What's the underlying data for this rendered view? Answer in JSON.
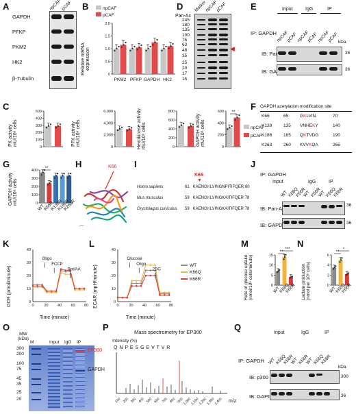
{
  "panels": {
    "A": "A",
    "B": "B",
    "C": "C",
    "D": "D",
    "E": "E",
    "F": "F",
    "G": "G",
    "H": "H",
    "I": "I",
    "J": "J",
    "K": "K",
    "L": "L",
    "M": "M",
    "N": "N",
    "O": "O",
    "P": "P",
    "Q": "Q"
  },
  "colors": {
    "npCAF": "#c7c7c7",
    "pCAF": "#e34a4a",
    "wt": "#8a8a8a",
    "k66q": "#f3b43a",
    "k66r": "#d63b3b",
    "k139r": "#3a6fb5",
    "k186r": "#5a9bd0",
    "k263r": "#2c5c8f"
  },
  "A": {
    "cols": [
      "npCAF",
      "pCAF"
    ],
    "rows": [
      "GAPDH",
      "PFKP",
      "PKM2",
      "HK2",
      "β-Tubulin"
    ]
  },
  "B": {
    "ylabel": "Relative mRNA\nexpression",
    "ticks": [
      "0",
      "0.5",
      "1.0",
      "1.5",
      "2.0"
    ],
    "categories": [
      "PKM2",
      "PFKP",
      "GAPDH",
      "HK2"
    ],
    "legend": [
      "npCAF",
      "pCAF"
    ]
  },
  "C": {
    "legend": [
      "npCAF",
      "pCAF"
    ],
    "sig": "**",
    "pk": {
      "ylabel": "PK activity\nmU/10⁶ cells",
      "ticks": [
        "0",
        "100",
        "200",
        "300",
        "400",
        "500"
      ]
    },
    "pfk": {
      "ylabel": "PFK activity\nmU/10⁶ cells",
      "ticks": [
        "0",
        "2,000",
        "4,000",
        "6,000"
      ]
    },
    "hk": {
      "ylabel": "Hexokinase activity\nmU/10⁶ cells",
      "ticks": [
        "0",
        "200",
        "400",
        "600",
        "800"
      ]
    },
    "gapdh": {
      "ylabel": "GAPDH activity\nmU/10⁶ cells",
      "ticks": [
        "0",
        "200",
        "400",
        "600"
      ]
    }
  },
  "D": {
    "title": "Pan-Ac",
    "cols": [
      "Marker",
      "npCAF",
      "pCAF"
    ],
    "markers": [
      "245",
      "180",
      "135",
      "100",
      "75",
      "63",
      "48",
      "35",
      "25",
      "20",
      "17",
      "15"
    ]
  },
  "E": {
    "ip_label": "IP: GAPDH",
    "groups": [
      "Input",
      "IgG",
      "IP"
    ],
    "cols": [
      "npCAF",
      "pCAF",
      "npCAF",
      "pCAF",
      "npCAF",
      "pCAF"
    ],
    "rows": [
      "IB: Pan-Ac",
      "IB: GAPDH"
    ],
    "kda": "kDa",
    "mw": [
      "36",
      "36"
    ]
  },
  "F": {
    "title": "GAPDH acetylation modification site",
    "rows": [
      {
        "site": "K66",
        "start": "65",
        "pre": "G",
        "k": "K",
        "post": "LVIN",
        "end": "70"
      },
      {
        "site": "K139",
        "start": "135",
        "pre": "VNHE",
        "k": "K",
        "post": "Y",
        "end": "140"
      },
      {
        "site": "K186",
        "start": "185",
        "pre": "Q",
        "k": "K",
        "post": "TVDG",
        "end": "190"
      },
      {
        "site": "K263",
        "start": "260",
        "pre": "KVV",
        "k": "K",
        "post": "QA",
        "end": "265"
      }
    ]
  },
  "G": {
    "ylabel": "GAPDH activity\nmU/10⁶ cells",
    "ticks": [
      "0",
      "100",
      "200",
      "300",
      "400"
    ],
    "categories": [
      "WT",
      "K66R",
      "K139R",
      "K186R",
      "K263R"
    ],
    "sig": "**"
  },
  "H": {
    "label": "K66"
  },
  "I": {
    "label": "K66",
    "rows": [
      {
        "sp": "Homo sapiens",
        "start": "61",
        "pre": "KAENG",
        "k": "K",
        "post": "LVINGNPITIFQER",
        "end": "80"
      },
      {
        "sp": "Mus musculus",
        "start": "59",
        "pre": "KAENG",
        "k": "K",
        "post": "LVINGKAITIFQER",
        "end": "78"
      },
      {
        "sp": "Oryctolagus cuniculus",
        "start": "59",
        "pre": "KAENG",
        "k": "K",
        "post": "LVINGKAITIFQER",
        "end": "78"
      }
    ]
  },
  "J": {
    "ip_label": "IP: GAPDH",
    "groups": [
      "Input",
      "IgG",
      "IP"
    ],
    "cols": [
      "WT",
      "K66Q",
      "K66R",
      "WT",
      "K66R",
      "WT",
      "K66Q",
      "K66R"
    ],
    "rows": [
      "IB: Pan-Ac",
      "IB: GAPDH"
    ],
    "mw": [
      "36",
      "36"
    ]
  },
  "K": {
    "ylabel": "OCR (pmol/minute)",
    "xlabel": "Time (minute)",
    "yticks": [
      "0",
      "10",
      "20",
      "30",
      "40"
    ],
    "xticks": [
      "0",
      "20",
      "40",
      "60",
      "80"
    ],
    "ann": [
      "Oligo",
      "FCCP",
      "Rot/AA"
    ]
  },
  "L": {
    "ylabel": "ECAR (mpH/minute)",
    "xlabel": "Time (minute)",
    "yticks": [
      "0",
      "10",
      "20",
      "30",
      "40"
    ],
    "xticks": [
      "0",
      "20",
      "40",
      "60",
      "80"
    ],
    "ann": [
      "Glucose",
      "Oligo",
      "2DG"
    ],
    "legend": [
      "WT",
      "K66Q",
      "K66R"
    ]
  },
  "M": {
    "ylabel": "Rate of glucose uptake\n(nmol/10⁶ cells/minute)",
    "ticks": [
      "0",
      "5",
      "10",
      "15"
    ],
    "categories": [
      "WT",
      "K66Q",
      "K66R"
    ],
    "sig1": "**",
    "sig2": "***"
  },
  "N": {
    "ylabel": "Lactate production\n(nmol per 10⁶ cells)",
    "ticks": [
      "0",
      "2",
      "4",
      "6"
    ],
    "categories": [
      "WT",
      "K66Q",
      "K66R"
    ],
    "sig1": "**",
    "sig2": "*"
  },
  "O": {
    "cols": [
      "M",
      "Input",
      "IgG",
      "IP"
    ],
    "mw_title": "MW\n(kDa)",
    "markers": [
      "300",
      "200",
      "100",
      "75",
      "45",
      "35",
      "25",
      "20"
    ],
    "ep300": "EP300",
    "gapdh": "GAPDH"
  },
  "P": {
    "title": "Mass spectrometry for EP300",
    "ylabel": "Intensity (%)",
    "xlabel": "m/z",
    "xticks": [
      "100",
      "200",
      "300",
      "400",
      "500",
      "600",
      "700",
      "800",
      "900",
      "1,000",
      "1,100",
      "1,200",
      "1,300",
      "1,400"
    ],
    "seq": "Q N P E S G E V T V R"
  },
  "Q": {
    "ip_label": "IP: GAPDH",
    "groups": [
      "Input",
      "IgG",
      "IP"
    ],
    "cols": [
      "WT",
      "K66Q",
      "K66R",
      "WT",
      "K66R",
      "WT",
      "K66Q",
      "K66R"
    ],
    "rows": [
      "IB: p300",
      "IB: GAPDH"
    ],
    "kda": "kDa",
    "mw": [
      "300",
      "36"
    ]
  },
  "chart_data": [
    {
      "type": "bar",
      "panel": "B",
      "categories": [
        "PKM2",
        "PFKP",
        "GAPDH",
        "HK2"
      ],
      "series": [
        {
          "name": "npCAF",
          "values": [
            1.0,
            1.0,
            1.0,
            1.0
          ]
        },
        {
          "name": "pCAF",
          "values": [
            1.15,
            1.05,
            1.25,
            1.1
          ]
        }
      ],
      "ylim": [
        0,
        2.0
      ]
    },
    {
      "type": "bar",
      "panel": "C-PK",
      "categories": [
        "npCAF",
        "pCAF"
      ],
      "values": [
        290,
        290
      ],
      "ylim": [
        0,
        500
      ]
    },
    {
      "type": "bar",
      "panel": "C-PFK",
      "categories": [
        "npCAF",
        "pCAF"
      ],
      "values": [
        3000,
        2950
      ],
      "ylim": [
        0,
        6000
      ]
    },
    {
      "type": "bar",
      "panel": "C-HK",
      "categories": [
        "npCAF",
        "pCAF"
      ],
      "values": [
        480,
        460
      ],
      "ylim": [
        0,
        800
      ]
    },
    {
      "type": "bar",
      "panel": "C-GAPDH",
      "categories": [
        "npCAF",
        "pCAF"
      ],
      "values": [
        320,
        490
      ],
      "ylim": [
        0,
        600
      ]
    },
    {
      "type": "bar",
      "panel": "G",
      "categories": [
        "WT",
        "K66R",
        "K139R",
        "K186R",
        "K263R"
      ],
      "values": [
        370,
        240,
        330,
        330,
        330
      ],
      "ylim": [
        0,
        400
      ]
    },
    {
      "type": "line",
      "panel": "K",
      "x": [
        0,
        7,
        14,
        21,
        28,
        35,
        42,
        49,
        56,
        63,
        70,
        77
      ],
      "series": [
        {
          "name": "WT",
          "values": [
            13,
            13,
            13,
            8,
            8,
            8,
            24,
            23,
            23,
            10,
            10,
            10
          ]
        },
        {
          "name": "K66Q",
          "values": [
            11,
            11,
            11,
            7,
            7,
            7,
            22,
            21,
            21,
            9,
            9,
            9
          ]
        },
        {
          "name": "K66R",
          "values": [
            12,
            12,
            12,
            8,
            8,
            8,
            25,
            24,
            24,
            10,
            10,
            10
          ]
        }
      ],
      "ylim": [
        0,
        40
      ]
    },
    {
      "type": "line",
      "panel": "L",
      "x": [
        0,
        7,
        14,
        21,
        28,
        35,
        42,
        49,
        56,
        63,
        70,
        77
      ],
      "series": [
        {
          "name": "WT",
          "values": [
            3,
            3,
            3,
            14,
            14,
            14,
            24,
            24,
            24,
            6,
            6,
            6
          ]
        },
        {
          "name": "K66Q",
          "values": [
            3,
            3,
            3,
            16,
            16,
            16,
            28,
            28,
            28,
            7,
            7,
            7
          ]
        },
        {
          "name": "K66R",
          "values": [
            3,
            3,
            3,
            12,
            12,
            12,
            20,
            20,
            20,
            5,
            5,
            5
          ]
        }
      ],
      "ylim": [
        0,
        40
      ]
    },
    {
      "type": "bar",
      "panel": "M",
      "categories": [
        "WT",
        "K66Q",
        "K66R"
      ],
      "values": [
        7,
        14,
        4
      ],
      "ylim": [
        0,
        15
      ]
    },
    {
      "type": "bar",
      "panel": "N",
      "categories": [
        "WT",
        "K66Q",
        "K66R"
      ],
      "values": [
        3.5,
        5.0,
        2.2
      ],
      "ylim": [
        0,
        6
      ]
    }
  ]
}
